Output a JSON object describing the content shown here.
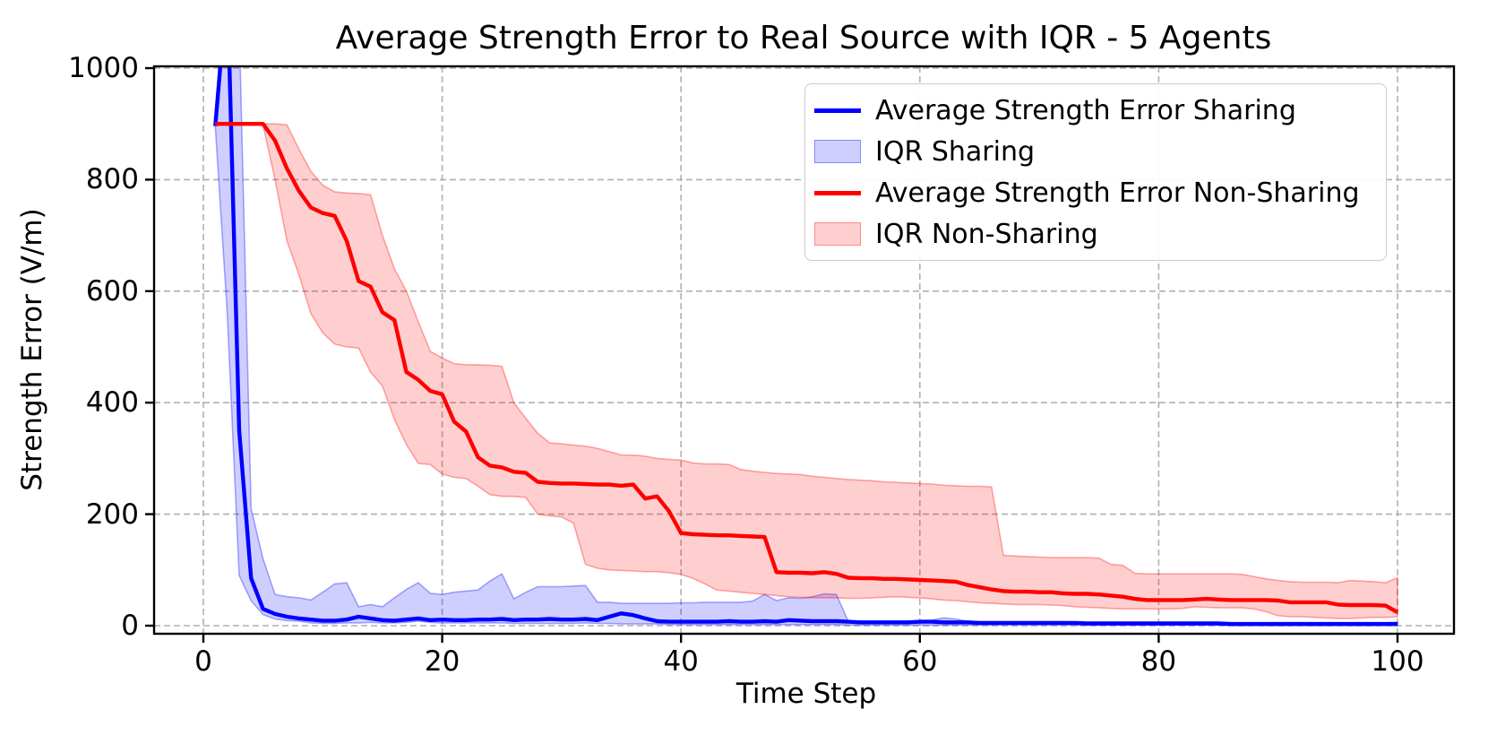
{
  "figure": {
    "title": "Average Strength Error to Real Source with IQR - 5 Agents",
    "x_axis_label": "Time Step",
    "y_axis_label": "Strength Error (V/m)"
  },
  "chart_data": {
    "type": "line",
    "title": "Average Strength Error to Real Source with IQR - 5 Agents",
    "xlabel": "Time Step",
    "ylabel": "Strength Error (V/m)",
    "x_ticks": [
      0,
      20,
      40,
      60,
      80,
      100
    ],
    "y_ticks": [
      0,
      200,
      400,
      600,
      800,
      1000
    ],
    "xlim": [
      -4,
      104.7
    ],
    "ylim": [
      -14.5,
      1003
    ],
    "grid": true,
    "grid_linestyle": "dashed",
    "grid_color": "#b0b0b0",
    "legend_position": "upper right",
    "band_fill_opacity": 0.19,
    "x": [
      1,
      2,
      3,
      4,
      5,
      6,
      7,
      8,
      9,
      10,
      11,
      12,
      13,
      14,
      15,
      16,
      17,
      18,
      19,
      20,
      21,
      22,
      23,
      24,
      25,
      26,
      27,
      28,
      29,
      30,
      31,
      32,
      33,
      34,
      35,
      36,
      37,
      38,
      39,
      40,
      41,
      42,
      43,
      44,
      45,
      46,
      47,
      48,
      49,
      50,
      51,
      52,
      53,
      54,
      55,
      56,
      57,
      58,
      59,
      60,
      61,
      62,
      63,
      64,
      65,
      66,
      67,
      68,
      69,
      70,
      71,
      72,
      73,
      74,
      75,
      76,
      77,
      78,
      79,
      80,
      81,
      82,
      83,
      84,
      85,
      86,
      87,
      88,
      89,
      90,
      91,
      92,
      93,
      94,
      95,
      96,
      97,
      98,
      99,
      100
    ],
    "series": [
      {
        "name": "Average Strength Error Sharing",
        "kind": "line",
        "color": "#0000ff",
        "values": [
          896,
          1150,
          350,
          85,
          30,
          21,
          16,
          13,
          11,
          9,
          9,
          11,
          16,
          13,
          10,
          9,
          11,
          13,
          10,
          11,
          10,
          10,
          11,
          11,
          12,
          10,
          11,
          11,
          12,
          11,
          11,
          12,
          10,
          16,
          22,
          19,
          13,
          8,
          7,
          7,
          7,
          7,
          7,
          8,
          7,
          7,
          8,
          7,
          10,
          9,
          8,
          8,
          8,
          7,
          6,
          6,
          6,
          6,
          6,
          7,
          7,
          6,
          6,
          6,
          5,
          5,
          5,
          5,
          5,
          5,
          5,
          5,
          5,
          4,
          4,
          4,
          4,
          4,
          4,
          4,
          4,
          4,
          4,
          4,
          4,
          3,
          3,
          3,
          3,
          3,
          3,
          3,
          3,
          3,
          3,
          3,
          3,
          3,
          3,
          3
        ]
      },
      {
        "name": "IQR Sharing",
        "kind": "band",
        "color": "#0000ff",
        "upper": [
          896,
          1250,
          1080,
          210,
          120,
          56,
          52,
          50,
          46,
          60,
          75,
          77,
          34,
          38,
          34,
          50,
          65,
          77,
          58,
          56,
          60,
          62,
          64,
          80,
          93,
          48,
          60,
          70,
          70,
          70,
          71,
          72,
          42,
          42,
          40,
          40,
          40,
          40,
          40,
          41,
          41,
          42,
          42,
          42,
          42,
          44,
          56,
          45,
          50,
          49,
          52,
          57,
          56,
          8,
          8,
          8,
          8,
          8,
          8,
          8,
          10,
          14,
          12,
          8,
          7,
          7,
          7,
          7,
          7,
          7,
          7,
          7,
          6,
          6,
          6,
          6,
          6,
          6,
          6,
          6,
          6,
          6,
          6,
          6,
          6,
          5,
          5,
          5,
          5,
          5,
          5,
          5,
          5,
          5,
          5,
          5,
          5,
          5,
          5,
          6
        ],
        "lower": [
          896,
          560,
          90,
          45,
          20,
          12,
          9,
          8,
          5,
          4,
          4,
          5,
          5,
          6,
          5,
          5,
          6,
          8,
          6,
          5,
          5,
          5,
          5,
          5,
          5,
          4,
          4,
          4,
          4,
          4,
          4,
          5,
          4,
          4,
          3,
          3,
          3,
          3,
          2,
          2,
          2,
          2,
          2,
          2,
          2,
          2,
          2,
          2,
          2,
          2,
          2,
          2,
          2,
          1,
          1,
          1,
          1,
          1,
          1,
          1,
          1,
          1,
          1,
          1,
          1,
          1,
          1,
          1,
          1,
          1,
          1,
          1,
          1,
          1,
          1,
          1,
          1,
          1,
          1,
          1,
          1,
          1,
          1,
          1,
          1,
          0,
          0,
          0,
          0,
          0,
          0,
          0,
          0,
          0,
          0,
          0,
          0,
          0,
          0,
          0
        ]
      },
      {
        "name": "Average Strength Error Non-Sharing",
        "kind": "line",
        "color": "#ff0000",
        "values": [
          900,
          900,
          900,
          900,
          900,
          870,
          820,
          780,
          750,
          740,
          735,
          690,
          618,
          608,
          562,
          548,
          455,
          441,
          421,
          415,
          366,
          348,
          302,
          287,
          284,
          276,
          274,
          258,
          256,
          255,
          255,
          254,
          253,
          253,
          251,
          253,
          228,
          232,
          205,
          166,
          164,
          163,
          162,
          162,
          161,
          160,
          159,
          96,
          95,
          95,
          94,
          96,
          93,
          86,
          85,
          85,
          84,
          84,
          83,
          82,
          81,
          80,
          79,
          73,
          69,
          65,
          62,
          61,
          61,
          60,
          60,
          58,
          57,
          57,
          56,
          54,
          52,
          48,
          46,
          46,
          46,
          46,
          47,
          48,
          47,
          46,
          46,
          46,
          46,
          45,
          42,
          42,
          42,
          42,
          38,
          37,
          37,
          37,
          36,
          24
        ]
      },
      {
        "name": "IQR Non-Sharing",
        "kind": "band",
        "color": "#ff0000",
        "upper": [
          900,
          900,
          900,
          900,
          900,
          900,
          898,
          855,
          815,
          790,
          778,
          776,
          775,
          773,
          700,
          640,
          600,
          545,
          492,
          480,
          470,
          468,
          468,
          467,
          465,
          400,
          372,
          345,
          328,
          326,
          324,
          322,
          318,
          312,
          306,
          306,
          304,
          300,
          298,
          297,
          292,
          290,
          290,
          289,
          280,
          277,
          275,
          273,
          272,
          271,
          268,
          266,
          264,
          262,
          261,
          260,
          258,
          257,
          256,
          255,
          254,
          252,
          251,
          250,
          250,
          249,
          126,
          125,
          124,
          123,
          122,
          122,
          122,
          122,
          121,
          110,
          108,
          94,
          93,
          93,
          93,
          93,
          93,
          93,
          93,
          93,
          92,
          88,
          84,
          81,
          79,
          78,
          78,
          78,
          77,
          81,
          80,
          79,
          77,
          86
        ],
        "lower": [
          900,
          900,
          900,
          900,
          898,
          800,
          690,
          630,
          560,
          525,
          505,
          500,
          498,
          455,
          430,
          370,
          325,
          291,
          289,
          272,
          266,
          264,
          250,
          235,
          232,
          232,
          230,
          200,
          197,
          195,
          184,
          110,
          103,
          100,
          99,
          98,
          97,
          97,
          95,
          92,
          85,
          75,
          64,
          62,
          60,
          58,
          56,
          54,
          52,
          51,
          50,
          50,
          50,
          49,
          49,
          50,
          51,
          52,
          51,
          50,
          48,
          46,
          45,
          43,
          41,
          40,
          39,
          38,
          38,
          38,
          37,
          36,
          34,
          33,
          32,
          31,
          30,
          30,
          30,
          30,
          30,
          31,
          34,
          33,
          32,
          32,
          32,
          30,
          25,
          18,
          16,
          16,
          15,
          14,
          13,
          13,
          14,
          15,
          15,
          16
        ]
      }
    ]
  }
}
